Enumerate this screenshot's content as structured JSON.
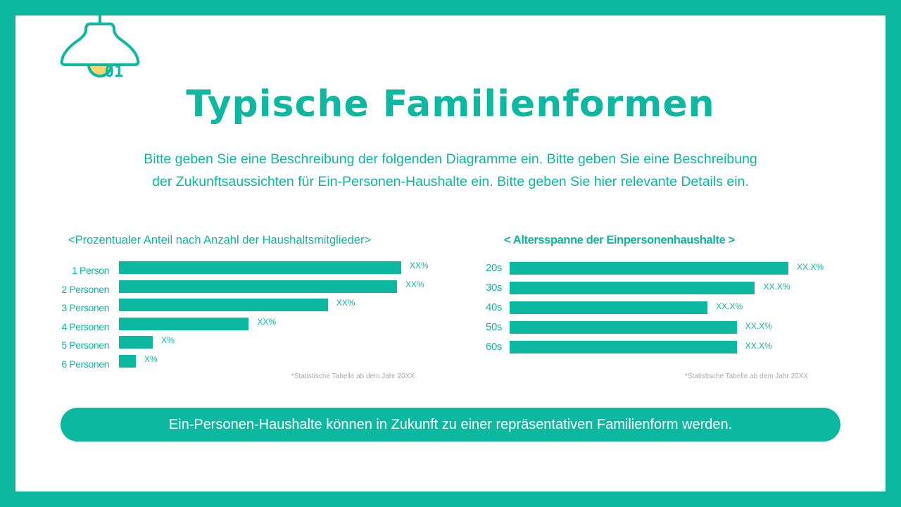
{
  "badge": {
    "number": "01",
    "icon": "lamp-icon"
  },
  "title": "Typische Familienformen",
  "description": {
    "line1": "Bitte geben Sie eine Beschreibung der folgenden Diagramme ein. Bitte geben Sie eine Beschreibung",
    "line2": "der Zukunftsaussichten für Ein-Personen-Haushalte ein. Bitte geben Sie hier relevante Details ein."
  },
  "colors": {
    "accent": "#0cb8a0",
    "bulb": "#ffd36e",
    "note": "#a9a9a9",
    "background": "#ffffff"
  },
  "chart_data": [
    {
      "type": "bar",
      "orientation": "horizontal",
      "title": "<Prozentualer Anteil nach Anzahl der Haushaltsmitglieder>",
      "categories": [
        "1 Person",
        "2 Personen",
        "3 Personen",
        "4 Personen",
        "5 Personen",
        "6 Personen"
      ],
      "values": [
        100,
        98.5,
        74,
        46,
        12,
        6
      ],
      "value_labels": [
        "XX%",
        "XX%",
        "XX%",
        "XX%",
        "X%",
        "X%"
      ],
      "note": "*Statistische Tabelle ab dem Jahr 20XX",
      "xlabel": "",
      "ylabel": "",
      "grid": false,
      "legend": "none"
    },
    {
      "type": "bar",
      "orientation": "horizontal",
      "title": "< Altersspanne der Einpersonenhaushalte >",
      "categories": [
        "20s",
        "30s",
        "40s",
        "50s",
        "60s"
      ],
      "values": [
        100,
        88,
        71,
        81.5,
        81.5
      ],
      "value_labels": [
        "XX.X%",
        "XX.X%",
        "XX.X%",
        "XX.X%",
        "XX.X%"
      ],
      "note": "*Statistische Tabelle ab dem Jahr 20XX",
      "xlabel": "",
      "ylabel": "",
      "grid": false,
      "legend": "none"
    }
  ],
  "banner": "Ein-Personen-Haushalte können in Zukunft zu einer repräsentativen Familienform werden."
}
